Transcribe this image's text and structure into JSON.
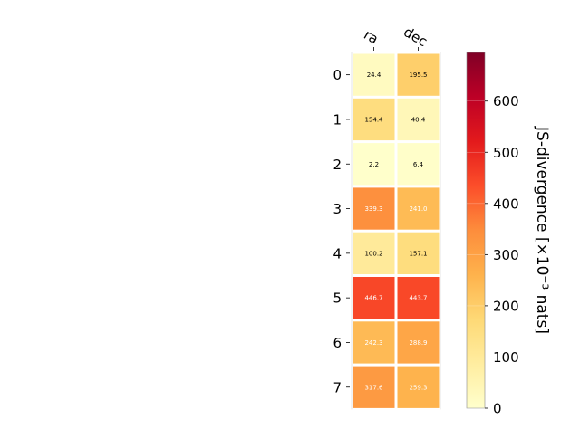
{
  "chart_data": {
    "type": "heatmap",
    "columns": [
      "ra",
      "dec"
    ],
    "rows": [
      "0",
      "1",
      "2",
      "3",
      "4",
      "5",
      "6",
      "7"
    ],
    "values": [
      [
        24.4,
        195.5
      ],
      [
        154.4,
        40.4
      ],
      [
        2.2,
        6.4
      ],
      [
        339.3,
        241.0
      ],
      [
        100.2,
        157.1
      ],
      [
        446.7,
        443.7
      ],
      [
        242.3,
        288.9
      ],
      [
        317.6,
        259.3
      ]
    ],
    "value_labels": [
      [
        "24.4",
        "195.5"
      ],
      [
        "154.4",
        "40.4"
      ],
      [
        "2.2",
        "6.4"
      ],
      [
        "339.3",
        "241.0"
      ],
      [
        "100.2",
        "157.1"
      ],
      [
        "446.7",
        "443.7"
      ],
      [
        "242.3",
        "288.9"
      ],
      [
        "317.6",
        "259.3"
      ]
    ],
    "colorbar": {
      "label": "JS-divergence [×10⁻³ nats]",
      "range": [
        0,
        695
      ],
      "ticks": [
        0,
        100,
        200,
        300,
        400,
        500,
        600
      ],
      "tick_labels": [
        "0",
        "100",
        "200",
        "300",
        "400",
        "500",
        "600"
      ],
      "colormap": "YlOrRd",
      "colormap_stops": [
        "#ffffcc",
        "#ffeda0",
        "#fed976",
        "#feb24c",
        "#fd8d3c",
        "#fc4e2a",
        "#e31a1c",
        "#bd0026",
        "#800026"
      ]
    },
    "grid": false
  }
}
